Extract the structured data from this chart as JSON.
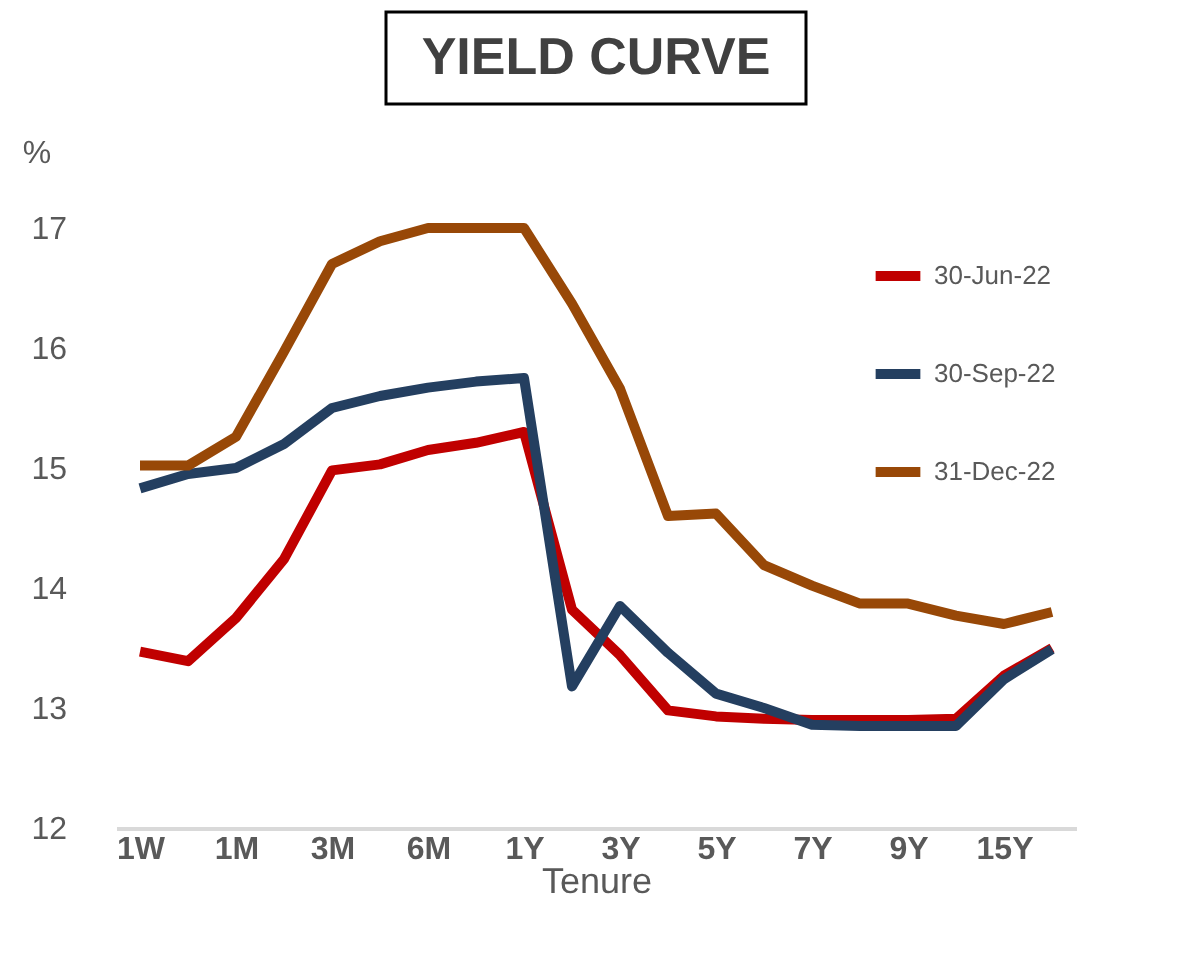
{
  "chart_data": {
    "type": "line",
    "title": "YIELD CURVE",
    "xlabel": "Tenure",
    "ylabel": "%",
    "categories": [
      "1W",
      null,
      "1M",
      null,
      "3M",
      null,
      "6M",
      null,
      "1Y",
      null,
      "3Y",
      null,
      "5Y",
      null,
      "7Y",
      null,
      "9Y",
      null,
      "15Y",
      null
    ],
    "series": [
      {
        "name": "30-Jun-22",
        "color": "#c00000",
        "values": [
          13.47,
          13.39,
          13.75,
          14.24,
          14.98,
          15.03,
          15.15,
          15.21,
          15.3,
          13.82,
          13.44,
          12.98,
          12.93,
          12.91,
          12.9,
          12.9,
          12.9,
          12.91,
          13.27,
          13.5
        ]
      },
      {
        "name": "30-Sep-22",
        "color": "#243f60",
        "values": [
          14.83,
          14.95,
          15.0,
          15.2,
          15.5,
          15.6,
          15.67,
          15.72,
          15.75,
          13.18,
          13.85,
          13.46,
          13.12,
          13.0,
          12.86,
          12.85,
          12.85,
          12.85,
          13.24,
          13.49
        ]
      },
      {
        "name": "31-Dec-22",
        "color": "#984807",
        "values": [
          15.02,
          15.02,
          15.26,
          15.97,
          16.7,
          16.89,
          17.0,
          17.0,
          17.0,
          16.37,
          15.66,
          14.6,
          14.62,
          14.19,
          14.02,
          13.87,
          13.87,
          13.77,
          13.7,
          13.8
        ]
      }
    ],
    "ylim": [
      12,
      17
    ],
    "yticks": [
      12,
      13,
      14,
      15,
      16,
      17
    ],
    "grid": false,
    "legend": "top right",
    "marker": "none",
    "line_style": "solid"
  }
}
